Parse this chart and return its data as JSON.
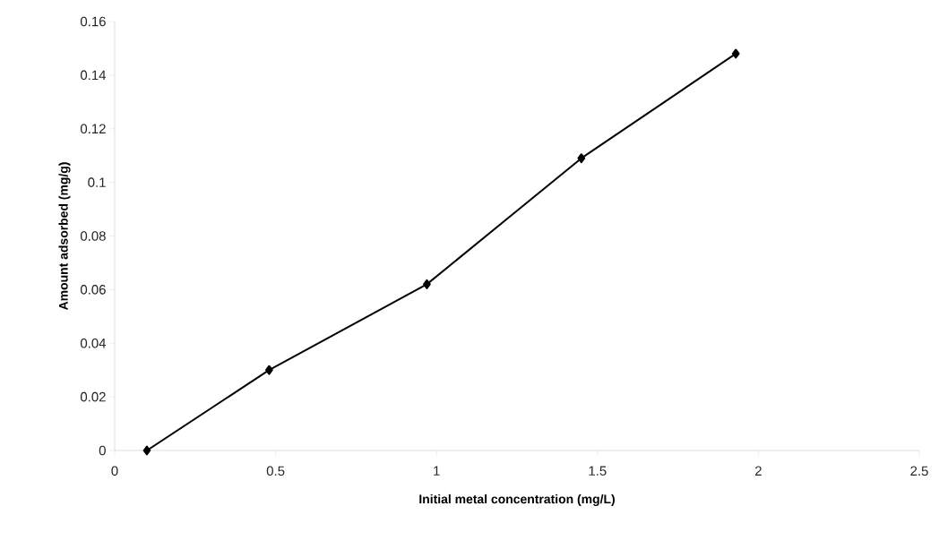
{
  "chart_data": {
    "type": "line",
    "xlabel": "Initial metal concentration (mg/L)",
    "ylabel": "Amount adsorbed (mg/g)",
    "x": [
      0.1,
      0.48,
      0.97,
      1.45,
      1.93
    ],
    "series": [
      {
        "color": "#000000",
        "values": [
          0,
          0.03,
          0.062,
          0.109,
          0.148
        ]
      }
    ],
    "xlim": [
      0,
      2.5
    ],
    "xticks": [
      0,
      0.5,
      1,
      1.5,
      2,
      2.5
    ],
    "ylim": [
      0,
      0.16
    ],
    "yticks": [
      0,
      0.02,
      0.04,
      0.06,
      0.08,
      0.1,
      0.12,
      0.14,
      0.16
    ],
    "grid": false,
    "marker": "diamond",
    "line_style": "solid"
  }
}
